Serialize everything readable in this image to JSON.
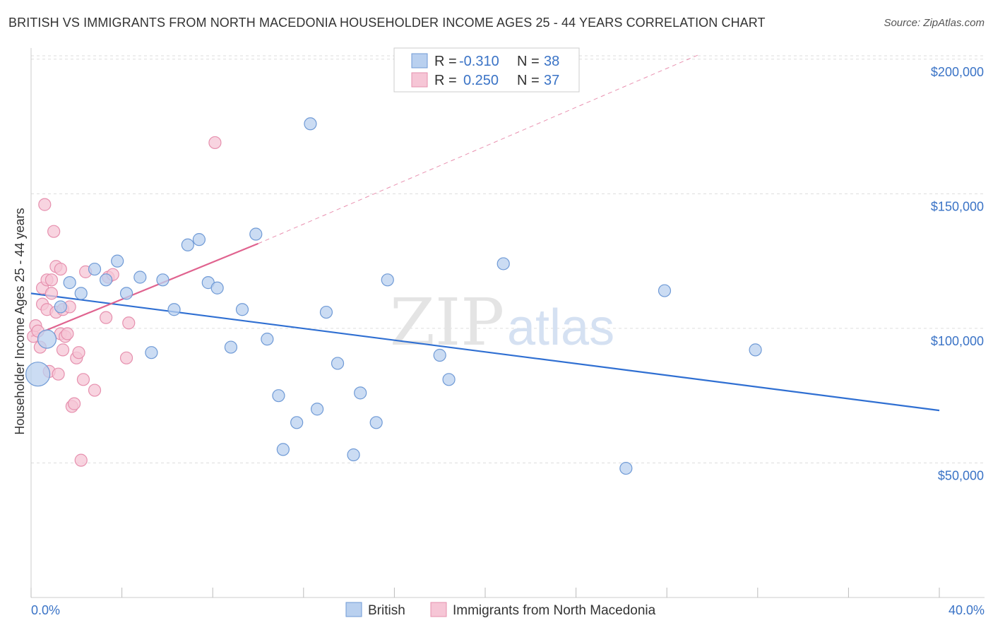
{
  "header": {
    "title": "BRITISH VS IMMIGRANTS FROM NORTH MACEDONIA HOUSEHOLDER INCOME AGES 25 - 44 YEARS CORRELATION CHART",
    "source": "Source: ZipAtlas.com"
  },
  "watermark": {
    "zip": "ZIP",
    "atlas": "atlas"
  },
  "legend": {
    "r_label": "R =",
    "n_label": "N =",
    "british": {
      "r": "-0.310",
      "n": "38"
    },
    "macedonia": {
      "r": "0.250",
      "n": "37"
    }
  },
  "colors": {
    "british_fill": "#b9d0ef",
    "british_stroke": "#6f9ad6",
    "british_line": "#2f6fd2",
    "macedonia_fill": "#f6c6d6",
    "macedonia_stroke": "#e690ae",
    "macedonia_line": "#e0638f",
    "grid": "#dddddd",
    "axis_text": "#3a73c6"
  },
  "chart_data": {
    "type": "scatter",
    "title": "BRITISH VS IMMIGRANTS FROM NORTH MACEDONIA HOUSEHOLDER INCOME AGES 25 - 44 YEARS CORRELATION CHART",
    "xlabel": "",
    "ylabel": "Householder Income Ages 25 - 44 years",
    "xlim": [
      0,
      40
    ],
    "ylim": [
      0,
      205000
    ],
    "x_tick_labels": [
      "0.0%",
      "40.0%"
    ],
    "y_ticks": [
      50000,
      100000,
      150000,
      200000
    ],
    "y_tick_labels": [
      "$50,000",
      "$100,000",
      "$150,000",
      "$200,000"
    ],
    "bottom_legend": [
      "British",
      "Immigrants from North Macedonia"
    ],
    "series": [
      {
        "name": "British",
        "points": [
          {
            "x": 0.3,
            "y": 83000,
            "big": 2
          },
          {
            "x": 0.7,
            "y": 96000,
            "big": 1
          },
          {
            "x": 1.3,
            "y": 108000
          },
          {
            "x": 1.7,
            "y": 117000
          },
          {
            "x": 2.2,
            "y": 113000
          },
          {
            "x": 2.8,
            "y": 122000
          },
          {
            "x": 3.3,
            "y": 118000
          },
          {
            "x": 3.8,
            "y": 125000
          },
          {
            "x": 4.2,
            "y": 113000
          },
          {
            "x": 4.8,
            "y": 119000
          },
          {
            "x": 5.3,
            "y": 91000
          },
          {
            "x": 5.8,
            "y": 118000
          },
          {
            "x": 6.3,
            "y": 107000
          },
          {
            "x": 6.9,
            "y": 131000
          },
          {
            "x": 7.4,
            "y": 133000
          },
          {
            "x": 7.8,
            "y": 117000
          },
          {
            "x": 8.2,
            "y": 115000
          },
          {
            "x": 8.8,
            "y": 93000
          },
          {
            "x": 9.3,
            "y": 107000
          },
          {
            "x": 9.9,
            "y": 135000
          },
          {
            "x": 10.4,
            "y": 96000
          },
          {
            "x": 10.9,
            "y": 75000
          },
          {
            "x": 11.1,
            "y": 55000
          },
          {
            "x": 11.7,
            "y": 65000
          },
          {
            "x": 12.3,
            "y": 176000
          },
          {
            "x": 12.6,
            "y": 70000
          },
          {
            "x": 13.0,
            "y": 106000
          },
          {
            "x": 13.5,
            "y": 87000
          },
          {
            "x": 14.2,
            "y": 53000
          },
          {
            "x": 14.5,
            "y": 76000
          },
          {
            "x": 15.2,
            "y": 65000
          },
          {
            "x": 15.7,
            "y": 118000
          },
          {
            "x": 18.0,
            "y": 90000
          },
          {
            "x": 18.4,
            "y": 81000
          },
          {
            "x": 20.8,
            "y": 124000
          },
          {
            "x": 26.2,
            "y": 48000
          },
          {
            "x": 27.9,
            "y": 114000
          },
          {
            "x": 31.9,
            "y": 92000
          }
        ]
      },
      {
        "name": "Immigrants from North Macedonia",
        "points": [
          {
            "x": 0.1,
            "y": 97000
          },
          {
            "x": 0.2,
            "y": 101000
          },
          {
            "x": 0.3,
            "y": 99000
          },
          {
            "x": 0.4,
            "y": 93000
          },
          {
            "x": 0.5,
            "y": 115000
          },
          {
            "x": 0.5,
            "y": 109000
          },
          {
            "x": 0.6,
            "y": 146000
          },
          {
            "x": 0.7,
            "y": 118000
          },
          {
            "x": 0.7,
            "y": 107000
          },
          {
            "x": 0.8,
            "y": 84000
          },
          {
            "x": 0.9,
            "y": 113000
          },
          {
            "x": 0.9,
            "y": 118000
          },
          {
            "x": 1.0,
            "y": 136000
          },
          {
            "x": 1.1,
            "y": 106000
          },
          {
            "x": 1.1,
            "y": 123000
          },
          {
            "x": 1.2,
            "y": 83000
          },
          {
            "x": 1.3,
            "y": 122000
          },
          {
            "x": 1.3,
            "y": 98000
          },
          {
            "x": 1.4,
            "y": 92000
          },
          {
            "x": 1.4,
            "y": 107000
          },
          {
            "x": 1.5,
            "y": 97000
          },
          {
            "x": 1.6,
            "y": 98000
          },
          {
            "x": 1.7,
            "y": 108000
          },
          {
            "x": 1.8,
            "y": 71000
          },
          {
            "x": 1.9,
            "y": 72000
          },
          {
            "x": 2.0,
            "y": 89000
          },
          {
            "x": 2.1,
            "y": 91000
          },
          {
            "x": 2.2,
            "y": 51000
          },
          {
            "x": 2.3,
            "y": 81000
          },
          {
            "x": 2.4,
            "y": 121000
          },
          {
            "x": 2.8,
            "y": 77000
          },
          {
            "x": 3.3,
            "y": 104000
          },
          {
            "x": 3.4,
            "y": 119000
          },
          {
            "x": 3.6,
            "y": 120000
          },
          {
            "x": 4.2,
            "y": 89000
          },
          {
            "x": 4.3,
            "y": 102000
          },
          {
            "x": 8.1,
            "y": 169000
          }
        ]
      }
    ],
    "trendlines": [
      {
        "series": "British",
        "x0": 0,
        "y0": 113000,
        "x1": 40,
        "y1": 69500
      },
      {
        "series": "Immigrants from North Macedonia",
        "x0": 0,
        "y0": 97000,
        "x1": 10,
        "y1": 131500,
        "dashed_to_x": 29.5,
        "dashed_to_y": 202000
      }
    ]
  }
}
